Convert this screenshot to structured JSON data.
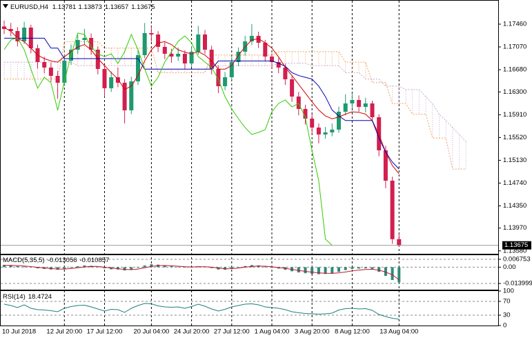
{
  "chart_data": {
    "type": "candlestick",
    "symbol": "EURUSD,H4",
    "categories": [
      "10 Jul 2018",
      null,
      null,
      null,
      null,
      null,
      null,
      null,
      null,
      "12 Jul 20:00",
      null,
      null,
      null,
      null,
      null,
      "17 Jul 12:00",
      null,
      null,
      null,
      null,
      null,
      null,
      "20 Jul 04:00",
      null,
      null,
      null,
      null,
      null,
      "24 Jul 20:00",
      null,
      null,
      null,
      null,
      null,
      "27 Jul 12:00",
      null,
      null,
      null,
      null,
      null,
      "1 Aug 04:00",
      null,
      null,
      null,
      null,
      null,
      "3 Aug 20:00",
      null,
      null,
      null,
      null,
      null,
      "8 Aug 12:00",
      null,
      null,
      null,
      null,
      null,
      null,
      "13 Aug 04:00",
      null,
      null,
      null,
      null,
      null,
      null,
      null,
      null,
      null,
      null
    ],
    "ohlc": {
      "open": [
        1.1742,
        1.17377,
        1.17342,
        1.17165,
        1.17401,
        1.17047,
        1.16811,
        1.16717,
        1.16575,
        1.16457,
        1.16835,
        1.17023,
        1.17189,
        1.17224,
        1.17023,
        1.16693,
        1.16363,
        1.16551,
        1.16457,
        1.15985,
        1.16481,
        1.16929,
        1.17307,
        1.17283,
        1.17071,
        1.16953,
        1.16905,
        1.16953,
        1.16787,
        1.16988,
        1.17283,
        1.17023,
        1.16693,
        1.16398,
        1.16551,
        1.16811,
        1.16988,
        1.17165,
        1.17259,
        1.17141,
        1.16905,
        1.16811,
        1.16717,
        1.16516,
        1.16221,
        1.16009,
        1.15843,
        1.1569,
        1.15572,
        1.15607,
        1.15655,
        1.15961,
        1.16103,
        1.16162,
        1.16044,
        1.16103,
        1.15867,
        1.15301,
        1.14781,
        1.13781,
        null,
        null,
        null,
        null,
        null,
        null,
        null,
        null,
        null,
        null
      ],
      "high": [
        1.1752,
        1.1748,
        1.1741,
        1.175,
        1.1745,
        1.1711,
        1.169,
        1.168,
        1.1666,
        1.169,
        1.1711,
        1.1728,
        1.1738,
        1.173,
        1.1708,
        1.1675,
        1.1665,
        1.1672,
        1.1652,
        1.1656,
        1.1701,
        1.1748,
        1.1742,
        1.1734,
        1.1715,
        1.1704,
        1.1706,
        1.1701,
        1.1708,
        1.1743,
        1.1736,
        1.1709,
        1.1675,
        1.1664,
        1.1689,
        1.1706,
        1.1726,
        1.1746,
        1.1733,
        1.1719,
        1.1696,
        1.1688,
        1.1678,
        1.1657,
        1.163,
        1.1608,
        1.1592,
        1.1576,
        1.157,
        1.1576,
        1.1605,
        1.1626,
        1.1628,
        1.1624,
        1.162,
        1.1615,
        1.1592,
        1.1538,
        1.1485,
        1.13873,
        null,
        null,
        null,
        null,
        null,
        null,
        null,
        null,
        null,
        null
      ],
      "low": [
        1.1729,
        1.1725,
        1.1708,
        1.1712,
        1.1696,
        1.167,
        1.1662,
        1.1647,
        1.1618,
        1.164,
        1.1676,
        1.1695,
        1.171,
        1.1694,
        1.166,
        1.1622,
        1.163,
        1.1638,
        1.1576,
        1.1592,
        1.1642,
        1.1688,
        1.1716,
        1.1698,
        1.1686,
        1.168,
        1.1683,
        1.1669,
        1.1673,
        1.1694,
        1.1695,
        1.166,
        1.1628,
        1.1633,
        1.165,
        1.1674,
        1.1692,
        1.171,
        1.1705,
        1.1682,
        1.1672,
        1.1662,
        1.1642,
        1.1613,
        1.159,
        1.1574,
        1.1558,
        1.1542,
        1.155,
        1.1554,
        1.156,
        1.159,
        1.1602,
        1.1596,
        1.1595,
        1.1579,
        1.152,
        1.1465,
        1.137,
        1.13657,
        null,
        null,
        null,
        null,
        null,
        null,
        null,
        null,
        null,
        null
      ],
      "close": [
        1.17377,
        1.17342,
        1.17165,
        1.17401,
        1.17047,
        1.16811,
        1.16717,
        1.16575,
        1.16457,
        1.16835,
        1.17023,
        1.17189,
        1.17224,
        1.17023,
        1.16693,
        1.16363,
        1.16551,
        1.16457,
        1.15985,
        1.16481,
        1.16929,
        1.17307,
        1.17283,
        1.17071,
        1.16953,
        1.16905,
        1.16953,
        1.16787,
        1.16988,
        1.17283,
        1.17023,
        1.16693,
        1.16398,
        1.16551,
        1.16811,
        1.16988,
        1.17165,
        1.17259,
        1.17141,
        1.16905,
        1.16811,
        1.16717,
        1.16516,
        1.16221,
        1.16009,
        1.15843,
        1.1569,
        1.15572,
        1.15607,
        1.15655,
        1.15961,
        1.16103,
        1.16162,
        1.16044,
        1.16103,
        1.15867,
        1.15301,
        1.14781,
        1.13781,
        1.13675,
        null,
        null,
        null,
        null,
        null,
        null,
        null,
        null,
        null,
        null
      ]
    },
    "colors": {
      "up": "#1f9a6e",
      "down": "#d21f4e"
    },
    "ylim": [
      1.1353,
      1.17873
    ],
    "yticks": [
      {
        "value": 1.1746,
        "label": "1.17460"
      },
      {
        "value": 1.1707,
        "label": "1.17070"
      },
      {
        "value": 1.1668,
        "label": "1.16680"
      },
      {
        "value": 1.163,
        "label": "1.16300"
      },
      {
        "value": 1.1591,
        "label": "1.15910"
      },
      {
        "value": 1.1552,
        "label": "1.15520"
      },
      {
        "value": 1.1513,
        "label": "1.15130"
      },
      {
        "value": 1.1474,
        "label": "1.14740"
      },
      {
        "value": 1.1435,
        "label": "1.14350"
      },
      {
        "value": 1.1397,
        "label": "1.13970"
      },
      {
        "value": 1.1358,
        "label": "1.13580"
      }
    ],
    "lines": [
      {
        "color": "#d40000",
        "values": [
          1.174,
          1.1734,
          1.1722,
          1.1716,
          1.1705,
          1.1693,
          1.1687,
          1.1683,
          1.1681,
          1.169,
          1.1699,
          1.1707,
          1.1711,
          1.1702,
          1.1687,
          1.1675,
          1.1663,
          1.1652,
          1.1634,
          1.164,
          1.1658,
          1.1683,
          1.1702,
          1.1714,
          1.1716,
          1.1711,
          1.1702,
          1.1698,
          1.1695,
          1.1699,
          1.1693,
          1.1683,
          1.1669,
          1.1669,
          1.1675,
          1.1693,
          1.1707,
          1.1719,
          1.1721,
          1.1714,
          1.1705,
          1.169,
          1.1672,
          1.1658,
          1.1643,
          1.1628,
          1.1613,
          1.1599,
          1.1589,
          1.1584,
          1.1587,
          1.1592,
          1.1596,
          1.1595,
          1.1592,
          1.1581,
          1.1557,
          1.1527,
          1.1504,
          1.149,
          null,
          null,
          null,
          null,
          null,
          null,
          null,
          null,
          null,
          null
        ]
      },
      {
        "color": "#0000b4",
        "values": [
          1.1722,
          1.1722,
          1.1722,
          1.1722,
          1.1722,
          1.1722,
          1.1722,
          1.1705,
          1.1705,
          1.1687,
          1.1687,
          1.1687,
          1.1687,
          1.1687,
          1.1687,
          1.1687,
          1.1687,
          1.1687,
          1.1687,
          1.1687,
          1.1687,
          1.1669,
          1.1669,
          1.1669,
          1.1669,
          1.1669,
          1.1669,
          1.1669,
          1.1669,
          1.1669,
          1.1669,
          1.1669,
          1.1683,
          1.1683,
          1.1683,
          1.1683,
          1.1683,
          1.1683,
          1.1683,
          1.1683,
          1.1683,
          1.1679,
          1.1674,
          1.1663,
          1.1658,
          1.1655,
          1.1652,
          1.164,
          1.1622,
          1.1599,
          1.1589,
          1.1581,
          1.1581,
          1.1581,
          1.1581,
          1.1581,
          1.1551,
          1.1527,
          1.151,
          1.1498,
          null,
          null,
          null,
          null,
          null,
          null,
          null,
          null,
          null,
          null
        ]
      },
      {
        "color": "#33cc00",
        "values": [
          1.17023,
          1.17189,
          1.17224,
          1.17023,
          1.16693,
          1.16363,
          1.16551,
          1.16457,
          1.15985,
          1.16481,
          1.16929,
          1.17307,
          1.17283,
          1.17071,
          1.16953,
          1.16905,
          1.16953,
          1.16787,
          1.16988,
          1.17283,
          1.17023,
          1.16693,
          1.16398,
          1.16551,
          1.16811,
          1.16988,
          1.17165,
          1.17259,
          1.17141,
          1.16905,
          1.16811,
          1.16717,
          1.16516,
          1.16221,
          1.16009,
          1.15843,
          1.1569,
          1.15572,
          1.15607,
          1.15655,
          1.15961,
          1.16103,
          1.16162,
          1.16044,
          1.16103,
          1.15867,
          1.15301,
          1.14781,
          1.13781,
          1.13675,
          null,
          null,
          null,
          null,
          null,
          null,
          null,
          null,
          null,
          null,
          null,
          null,
          null,
          null,
          null,
          null,
          null,
          null,
          null,
          null
        ]
      }
    ],
    "cloud": [
      {
        "color": "#c9a8d6",
        "values": [
          1.1681,
          1.1681,
          1.1681,
          1.1681,
          1.1681,
          1.1681,
          1.1681,
          1.1681,
          1.1681,
          1.1681,
          1.1681,
          1.1675,
          1.1675,
          1.1675,
          1.1675,
          1.1675,
          1.1675,
          1.1675,
          1.1675,
          1.1675,
          1.1675,
          1.1669,
          1.1669,
          1.1669,
          1.1669,
          1.1669,
          1.1669,
          1.1669,
          1.1669,
          1.1669,
          1.1669,
          1.1675,
          1.1675,
          1.1675,
          1.1675,
          1.1675,
          1.1675,
          1.1675,
          1.1675,
          1.1675,
          1.1675,
          1.1679,
          1.1679,
          1.1679,
          1.1679,
          1.1679,
          1.1675,
          1.1675,
          1.1675,
          1.1675,
          1.1675,
          1.1663,
          1.1663,
          1.1663,
          1.1652,
          1.1652,
          1.1652,
          1.164,
          1.164,
          1.164,
          1.1634,
          1.1634,
          1.1634,
          1.1622,
          1.161,
          1.1592,
          1.1581,
          1.1569,
          1.1557,
          1.1545
        ]
      },
      {
        "color": "#f0a060",
        "values": [
          1.1652,
          1.1652,
          1.1652,
          1.1652,
          1.1652,
          1.1652,
          1.1652,
          1.1652,
          1.1652,
          1.1716,
          1.1716,
          1.1716,
          1.1716,
          1.1716,
          1.1716,
          1.1705,
          1.1705,
          1.1705,
          1.1705,
          1.1705,
          1.1705,
          1.1705,
          1.1705,
          1.1663,
          1.1663,
          1.1663,
          1.1663,
          1.1663,
          1.1663,
          1.1663,
          1.1663,
          1.1693,
          1.1693,
          1.1693,
          1.1693,
          1.1693,
          1.1693,
          1.1693,
          1.1693,
          1.1693,
          1.1693,
          1.1699,
          1.1699,
          1.1699,
          1.1699,
          1.1699,
          1.1699,
          1.1699,
          1.1699,
          1.1699,
          1.1699,
          1.1681,
          1.1681,
          1.1681,
          1.1681,
          1.1646,
          1.1646,
          1.1646,
          1.161,
          1.161,
          1.161,
          1.1592,
          1.1592,
          1.1592,
          1.1551,
          1.1551,
          1.1551,
          1.1498,
          1.1498,
          1.1498
        ]
      }
    ],
    "macd": {
      "name": "MACD(5,35,5)",
      "ylim": [
        -0.0193,
        0.0109
      ],
      "yticks": [
        0.006753,
        {
          "value": 0,
          "label": "0.00"
        },
        -0.013999
      ],
      "histogram": {
        "color": "#2e8b7a",
        "values": [
          0.002,
          0.0015,
          0.0008,
          0.0005,
          -0.0002,
          -0.001,
          -0.0015,
          -0.002,
          -0.0022,
          -0.0015,
          -0.0005,
          0.0008,
          0.0015,
          0.0012,
          0.0002,
          -0.001,
          -0.0018,
          -0.002,
          -0.0028,
          -0.0022,
          -0.0005,
          0.0015,
          0.0025,
          0.0022,
          0.0015,
          0.0008,
          0.0003,
          -0.0002,
          0.0,
          0.0008,
          0.0005,
          -0.0008,
          -0.002,
          -0.0022,
          -0.0012,
          0.0,
          0.001,
          0.0018,
          0.0015,
          0.0005,
          -0.0005,
          -0.0012,
          -0.0022,
          -0.0035,
          -0.0045,
          -0.0052,
          -0.0058,
          -0.006,
          -0.0058,
          -0.0055,
          -0.004,
          -0.0025,
          -0.0015,
          -0.0012,
          -0.001,
          -0.0015,
          -0.004,
          -0.0075,
          -0.011,
          -0.013056,
          null,
          null,
          null,
          null,
          null,
          null,
          null,
          null,
          null,
          null
        ]
      },
      "signal": {
        "color": "#c8102e",
        "values": [
          0.0015,
          0.0016,
          0.0013,
          0.001,
          0.0005,
          -0.0001,
          -0.0007,
          -0.0012,
          -0.0016,
          -0.0016,
          -0.0012,
          -0.0005,
          0.0002,
          0.0007,
          0.0006,
          0.0,
          -0.0008,
          -0.0013,
          -0.0019,
          -0.0021,
          -0.0016,
          -0.0005,
          0.0007,
          0.0013,
          0.0014,
          0.0012,
          0.0008,
          0.0004,
          0.0002,
          0.0004,
          0.0004,
          0.0,
          -0.0008,
          -0.0014,
          -0.0013,
          -0.0008,
          0.0,
          0.0007,
          0.001,
          0.0008,
          0.0003,
          -0.0003,
          -0.001,
          -0.0019,
          -0.0028,
          -0.0036,
          -0.0043,
          -0.0049,
          -0.0052,
          -0.0053,
          -0.0049,
          -0.0041,
          -0.0032,
          -0.0025,
          -0.002,
          -0.0018,
          -0.0025,
          -0.0042,
          -0.0065,
          -0.010857,
          null,
          null,
          null,
          null,
          null,
          null,
          null,
          null,
          null,
          null
        ]
      }
    },
    "rsi": {
      "name": "RSI(14)",
      "ylim": [
        0,
        100
      ],
      "yticks": [
        100,
        70,
        30,
        0
      ],
      "color": "#1e7f7a",
      "values": [
        62,
        58,
        52,
        60,
        50,
        46,
        45,
        43,
        40,
        50,
        55,
        58,
        59,
        54,
        48,
        42,
        47,
        46,
        38,
        50,
        58,
        64,
        63,
        57,
        54,
        53,
        54,
        50,
        55,
        62,
        56,
        48,
        42,
        47,
        54,
        58,
        62,
        63,
        60,
        54,
        52,
        50,
        46,
        40,
        37,
        35,
        34,
        33,
        34,
        36,
        45,
        49,
        50,
        48,
        49,
        44,
        32,
        26,
        21,
        18.4724,
        null,
        null,
        null,
        null,
        null,
        null,
        null,
        null,
        null,
        null
      ]
    }
  }
}
